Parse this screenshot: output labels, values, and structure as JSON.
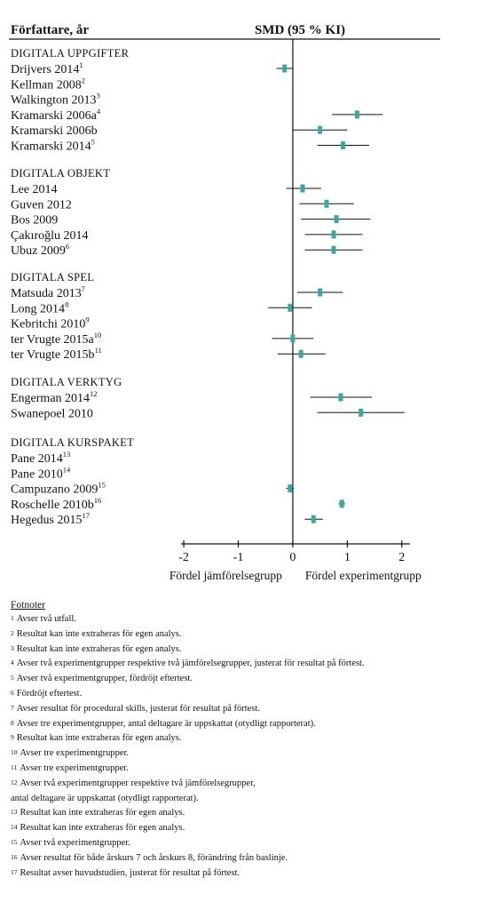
{
  "chart_data": {
    "type": "forest",
    "header_left": "Författare, år",
    "header_right": "SMD (95 % KI)",
    "xlim": [
      -2.05,
      2.15
    ],
    "xticks": [
      "-2",
      "-1",
      "0",
      "1",
      "2"
    ],
    "xlabel_left": "Fördel jämförelsegrupp",
    "xlabel_right": "Fördel experimentgrupp",
    "marker_color": "#3aa89a",
    "groups": [
      {
        "name": "DIGITALA UPPGIFTER",
        "studies": [
          {
            "label": "Drijvers 2014",
            "sup": "1",
            "est": -0.15,
            "lo": -0.3,
            "hi": 0.0
          },
          {
            "label": "Kellman 2008",
            "sup": "2",
            "est": null,
            "lo": null,
            "hi": null
          },
          {
            "label": "Walkington 2013",
            "sup": "3",
            "est": null,
            "lo": null,
            "hi": null
          },
          {
            "label": "Kramarski 2006a",
            "sup": "4",
            "est": 1.18,
            "lo": 0.72,
            "hi": 1.65
          },
          {
            "label": "Kramarski 2006b",
            "sup": "",
            "est": 0.5,
            "lo": 0.0,
            "hi": 1.0
          },
          {
            "label": "Kramarski 2014",
            "sup": "5",
            "est": 0.92,
            "lo": 0.45,
            "hi": 1.4
          }
        ]
      },
      {
        "name": "DIGITALA OBJEKT",
        "studies": [
          {
            "label": "Lee 2014",
            "sup": "",
            "est": 0.18,
            "lo": -0.12,
            "hi": 0.52
          },
          {
            "label": "Guven 2012",
            "sup": "",
            "est": 0.62,
            "lo": 0.12,
            "hi": 1.12
          },
          {
            "label": "Bos 2009",
            "sup": "",
            "est": 0.8,
            "lo": 0.15,
            "hi": 1.42
          },
          {
            "label": "Çakıroğlu 2014",
            "sup": "",
            "est": 0.75,
            "lo": 0.22,
            "hi": 1.28
          },
          {
            "label": "Ubuz 2009",
            "sup": "6",
            "est": 0.75,
            "lo": 0.22,
            "hi": 1.28
          }
        ]
      },
      {
        "name": "DIGITALA SPEL",
        "studies": [
          {
            "label": "Matsuda 2013",
            "sup": "7",
            "est": 0.5,
            "lo": 0.08,
            "hi": 0.92
          },
          {
            "label": "Long 2014",
            "sup": "8",
            "est": -0.05,
            "lo": -0.45,
            "hi": 0.35
          },
          {
            "label": "Kebritchi 2010",
            "sup": "9",
            "est": null,
            "lo": null,
            "hi": null
          },
          {
            "label": "ter Vrugte 2015a",
            "sup": "10",
            "est": 0.0,
            "lo": -0.38,
            "hi": 0.38
          },
          {
            "label": "ter Vrugte 2015b",
            "sup": "11",
            "est": 0.15,
            "lo": -0.28,
            "hi": 0.6
          }
        ]
      },
      {
        "name": "DIGITALA VERKTYG",
        "studies": [
          {
            "label": "Engerman 2014",
            "sup": "12",
            "est": 0.88,
            "lo": 0.32,
            "hi": 1.45
          },
          {
            "label": "Swanepoel 2010",
            "sup": "",
            "est": 1.25,
            "lo": 0.45,
            "hi": 2.05
          }
        ]
      },
      {
        "name": "DIGITALA KURSPAKET",
        "studies": [
          {
            "label": "Pane 2014",
            "sup": "13",
            "est": null,
            "lo": null,
            "hi": null
          },
          {
            "label": "Pane 2010",
            "sup": "14",
            "est": null,
            "lo": null,
            "hi": null
          },
          {
            "label": "Campuzano 2009",
            "sup": "15",
            "est": -0.05,
            "lo": -0.12,
            "hi": 0.02
          },
          {
            "label": "Roschelle 2010b",
            "sup": "16",
            "est": 0.9,
            "lo": 0.84,
            "hi": 0.96
          },
          {
            "label": "Hegedus 2015",
            "sup": "17",
            "est": 0.38,
            "lo": 0.22,
            "hi": 0.55
          }
        ]
      }
    ]
  },
  "footnotes": {
    "title": "Fotnoter",
    "items": [
      {
        "num": "1",
        "text": "Avser två utfall."
      },
      {
        "num": "2",
        "text": "Resultat kan inte extraheras för egen analys."
      },
      {
        "num": "3",
        "text": "Resultat kan inte extraheras för egen analys."
      },
      {
        "num": "4",
        "text": "Avser två experimentgrupper respektive två jämförelsegrupper, justerat för resultat på förtest."
      },
      {
        "num": "5",
        "text": "Avser två experimentgrupper, fördröjt eftertest."
      },
      {
        "num": "6",
        "text": "Fördröjt eftertest."
      },
      {
        "num": "7",
        "text": "Avser resultat för procedural skills, justerat för resultat på förtest."
      },
      {
        "num": "8",
        "text": "Avser tre experimentgrupper, antal deltagare är uppskattat (otydligt rapporterat)."
      },
      {
        "num": "9",
        "text": "Resultat kan inte extraheras för egen analys."
      },
      {
        "num": "10",
        "text": "Avser tre experimentgrupper."
      },
      {
        "num": "11",
        "text": "Avser tre experimentgrupper."
      },
      {
        "num": "12",
        "text": "Avser två experimentgrupper respektive två jämförelsegrupper,\nantal deltagare är uppskattat (otydligt rapporterat)."
      },
      {
        "num": "13",
        "text": "Resultat kan inte extraheras för egen analys."
      },
      {
        "num": "14",
        "text": "Resultat kan inte extraheras för egen analys."
      },
      {
        "num": "15",
        "text": "Avser två experimentgrupper."
      },
      {
        "num": "16",
        "text": "Avser resultat för både årskurs 7 och årskurs 8, förändring från baslinje."
      },
      {
        "num": "17",
        "text": "Resultat avser huvudstudien, justerat för resultat på förtest."
      }
    ]
  }
}
